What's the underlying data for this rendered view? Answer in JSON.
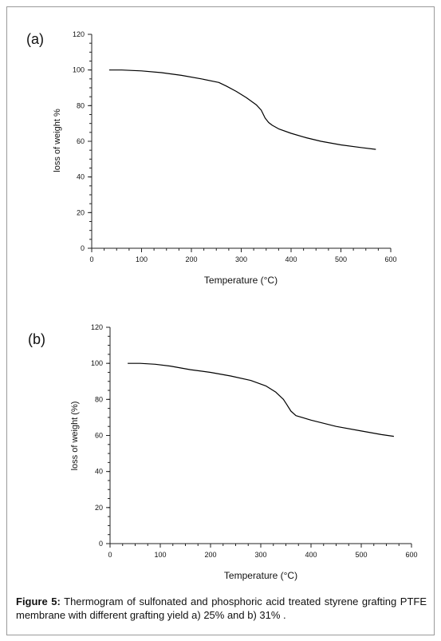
{
  "figure": {
    "caption_label": "Figure 5:",
    "caption_text": " Thermogram of sulfonated and phosphoric acid treated styrene grafting PTFE membrane with different grafting yield a) 25% and b) 31% ."
  },
  "chart_data": [
    {
      "type": "line",
      "panel_label": "(a)",
      "xlabel": "Temperature (°C)",
      "ylabel": "loss of weight %",
      "xlim": [
        0,
        600
      ],
      "ylim": [
        0,
        120
      ],
      "xticks": [
        0,
        100,
        200,
        300,
        400,
        500,
        600
      ],
      "yticks": [
        0,
        20,
        40,
        60,
        80,
        100,
        120
      ],
      "grid": false,
      "series": [
        {
          "x": [
            35,
            60,
            100,
            140,
            180,
            220,
            255,
            270,
            290,
            310,
            330,
            340,
            348,
            355,
            362,
            375,
            400,
            430,
            460,
            500,
            540,
            570
          ],
          "y": [
            100,
            100,
            99.5,
            98.5,
            97,
            95,
            93,
            91,
            88,
            84.5,
            80.5,
            77.5,
            73,
            70.5,
            69,
            67,
            64.5,
            62,
            60,
            58,
            56.5,
            55.5
          ]
        }
      ]
    },
    {
      "type": "line",
      "panel_label": "(b)",
      "xlabel": "Temperature (°C)",
      "ylabel": "loss of weight (%)",
      "xlim": [
        0,
        600
      ],
      "ylim": [
        0,
        120
      ],
      "xticks": [
        0,
        100,
        200,
        300,
        400,
        500,
        600
      ],
      "yticks": [
        0,
        20,
        40,
        60,
        80,
        100,
        120
      ],
      "grid": false,
      "series": [
        {
          "x": [
            35,
            60,
            90,
            120,
            160,
            200,
            240,
            280,
            310,
            330,
            345,
            352,
            360,
            370,
            400,
            450,
            500,
            540,
            565
          ],
          "y": [
            100,
            100,
            99.5,
            98.5,
            96.5,
            95,
            93,
            90.5,
            87.5,
            84,
            80,
            77,
            73.5,
            71,
            68.5,
            65,
            62.5,
            60.5,
            59.5
          ]
        }
      ]
    }
  ]
}
